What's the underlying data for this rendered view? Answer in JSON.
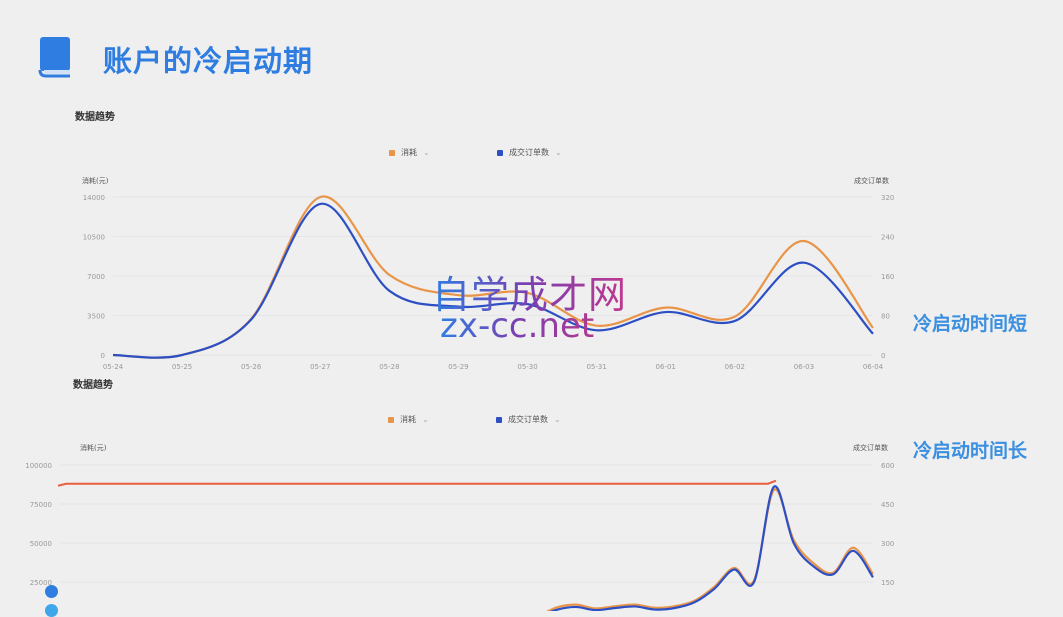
{
  "slide": {
    "title": "账户的冷启动期",
    "icon": "book-icon",
    "accent": "#2f7de1",
    "label_short": "冷启动时间短",
    "label_long": "冷启动时间长",
    "watermark_cn": "自学成才网",
    "watermark_url": "zx-cc.net"
  },
  "chart_data": [
    {
      "type": "line",
      "section_title": "数据趋势",
      "legend": [
        {
          "name": "消耗",
          "color": "#e8954a"
        },
        {
          "name": "成交订单数",
          "color": "#2d4fc4"
        }
      ],
      "ylabel_left": "消耗(元)",
      "ylabel_right": "成交订单数",
      "ylim_left": [
        0,
        14000
      ],
      "ylim_right": [
        0,
        320
      ],
      "yticks_left": [
        "0",
        "3500",
        "7000",
        "10500",
        "14000"
      ],
      "yticks_right": [
        "0",
        "80",
        "160",
        "240",
        "320"
      ],
      "grid": true,
      "legend_position": "top-center",
      "categories": [
        "05-24",
        "05-25",
        "05-26",
        "05-27",
        "05-28",
        "05-29",
        "05-30",
        "05-31",
        "06-01",
        "06-02",
        "06-03",
        "06-04"
      ],
      "series": [
        {
          "name": "消耗",
          "axis": "left",
          "values": [
            0,
            0,
            3200,
            14000,
            7100,
            5300,
            5500,
            2600,
            4200,
            3400,
            10100,
            2400
          ]
        },
        {
          "name": "成交订单数",
          "axis": "right",
          "values": [
            0,
            0,
            72,
            306,
            130,
            98,
            103,
            50,
            87,
            69,
            187,
            43
          ]
        }
      ]
    },
    {
      "type": "line",
      "section_title": "数据趋势",
      "legend": [
        {
          "name": "消耗",
          "color": "#e8954a"
        },
        {
          "name": "成交订单数",
          "color": "#2d4fc4"
        }
      ],
      "ylabel_left": "消耗(元)",
      "ylabel_right": "成交订单数",
      "ylim_left": [
        0,
        100000
      ],
      "ylim_right": [
        0,
        600
      ],
      "yticks_left": [
        "25000",
        "50000",
        "75000",
        "100000"
      ],
      "yticks_right": [
        "150",
        "300",
        "450",
        "600"
      ],
      "grid": true,
      "legend_position": "top-center",
      "reference_line": {
        "value": 88000,
        "color": "#e8603c"
      },
      "series": [
        {
          "name": "消耗",
          "axis": "left",
          "values": [
            0,
            0,
            0,
            0,
            0,
            0,
            0,
            0,
            0,
            0,
            0,
            0,
            0,
            0,
            0,
            2500,
            600,
            500,
            600,
            500,
            600,
            500,
            600,
            500,
            2500,
            8500,
            10500,
            8000,
            9500,
            10500,
            8500,
            9500,
            13000,
            22000,
            34000,
            26000,
            84000,
            52000,
            37000,
            31000,
            47000,
            30000
          ]
        },
        {
          "name": "成交订单数",
          "axis": "right",
          "values": [
            0,
            0,
            0,
            0,
            0,
            0,
            0,
            0,
            0,
            0,
            0,
            0,
            0,
            0,
            0,
            6,
            3,
            3,
            3,
            3,
            3,
            3,
            3,
            3,
            12,
            42,
            54,
            42,
            50,
            56,
            44,
            50,
            72,
            124,
            198,
            150,
            516,
            300,
            210,
            180,
            270,
            168
          ]
        }
      ]
    }
  ]
}
